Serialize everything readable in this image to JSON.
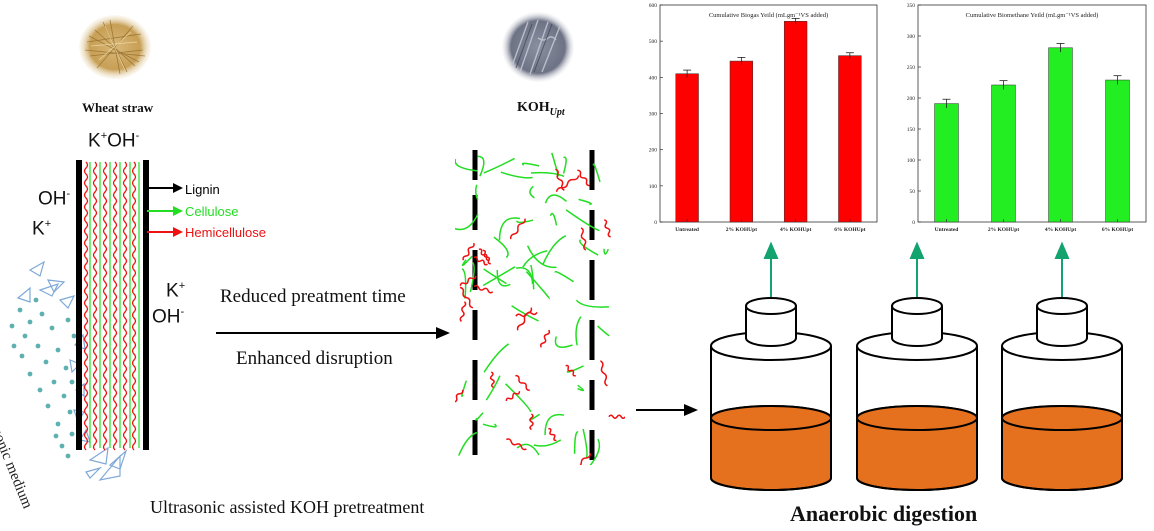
{
  "labels": {
    "wheat_straw": "Wheat straw",
    "koh_upt_main": "KOH",
    "koh_upt_sub": "Upt",
    "k_top": "K",
    "k_top_sup": "+",
    "oh_top": "OH",
    "oh_top_sup": "-",
    "oh_left": "OH",
    "oh_left_sup": "-",
    "k_left": "K",
    "k_left_sup": "+",
    "k_right": "K",
    "k_right_sup": "+",
    "oh_right": "OH",
    "oh_right_sup": "-",
    "lignin": "Lignin",
    "cellulose": "Cellulose",
    "hemicellulose": "Hemicellulose",
    "ultrasonic_medium": "Ultrasonic medium",
    "reduced_time": "Reduced preatment time",
    "enhanced_disruption": "Enhanced disruption",
    "bottom_caption": "Ultrasonic assisted KOH pretreatment",
    "anaerobic": "Anaerobic digestion"
  },
  "colors": {
    "lignin": "#000000",
    "cellulose": "#22dd22",
    "hemicellulose": "#ee1111",
    "bar_red": "#ff0000",
    "bar_green": "#22ee22",
    "digestate": "#e5701e",
    "arrow_green": "#12a36e"
  },
  "chart_data": [
    {
      "type": "bar",
      "title": "Cumulative Biogas Yeild (mLgm⁻¹VS added)",
      "categories": [
        "Untreated",
        "2% KOHUpt",
        "4% KOHUpt",
        "6% KOHUpt"
      ],
      "values": [
        410,
        445,
        555,
        460
      ],
      "errors": [
        10,
        10,
        8,
        8
      ],
      "ylim": [
        0,
        600
      ],
      "yticks": [
        0,
        100,
        200,
        300,
        400,
        500,
        600
      ],
      "color": "#ff0000"
    },
    {
      "type": "bar",
      "title": "Cumulative Biomethane Yeild (mLgm⁻¹VS added)",
      "categories": [
        "Untreated",
        "2% KOHUpt",
        "4% KOHUpt",
        "6% KOHUpt"
      ],
      "values": [
        191,
        221,
        281,
        229
      ],
      "errors": [
        7,
        7,
        7,
        7
      ],
      "ylim": [
        0,
        350
      ],
      "yticks": [
        0,
        50,
        100,
        150,
        200,
        250,
        300,
        350
      ],
      "color": "#22ee22"
    }
  ]
}
